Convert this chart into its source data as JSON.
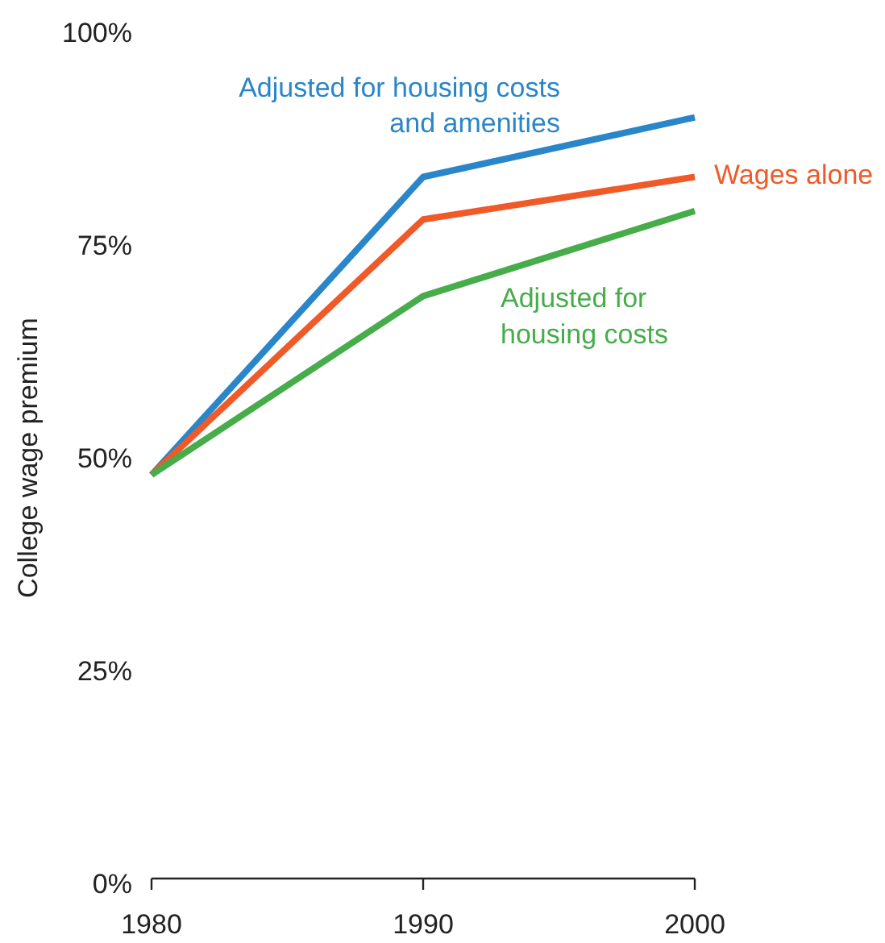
{
  "chart_data": {
    "type": "line",
    "ylabel": "College wage premium",
    "x": [
      1980,
      1990,
      2000
    ],
    "xlim": [
      1980,
      2000
    ],
    "xticks": [
      1980,
      1990,
      2000
    ],
    "ylim": [
      0,
      100
    ],
    "yticks": [
      {
        "value": 0,
        "label": "0%"
      },
      {
        "value": 25,
        "label": "25%"
      },
      {
        "value": 50,
        "label": "50%"
      },
      {
        "value": 75,
        "label": "75%"
      },
      {
        "value": 100,
        "label": "100%"
      }
    ],
    "grid": false,
    "marker": "none",
    "line_style": "solid",
    "series": [
      {
        "name": "Adjusted for housing costs\nand amenities",
        "color": "#2a86c8",
        "values": [
          48,
          83,
          90
        ]
      },
      {
        "name": "Wages alone",
        "color": "#f05a28",
        "values": [
          48,
          78,
          83
        ]
      },
      {
        "name": "Adjusted for\nhousing costs",
        "color": "#46ad4a",
        "values": [
          48,
          69,
          79
        ]
      }
    ]
  }
}
